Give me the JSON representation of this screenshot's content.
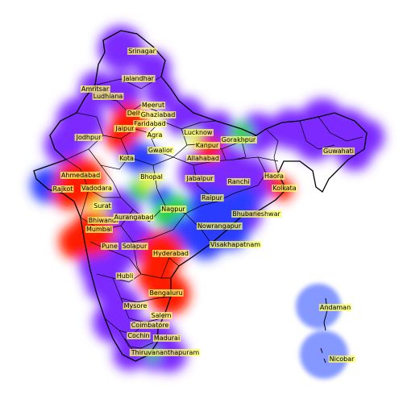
{
  "colors": {
    "purple": "#7b2cff",
    "blue": "#2a3cff",
    "red": "#ff1a00",
    "green": "#2fd14a",
    "yellow": "#e8ff2a",
    "label_bg": "#ffff66",
    "island_blue": "#6f86ff",
    "outline": "#000000"
  },
  "cities": [
    {
      "name": "Srinagar",
      "color": "purple"
    },
    {
      "name": "Jalandhar",
      "color": "purple"
    },
    {
      "name": "Amritsar",
      "color": "purple"
    },
    {
      "name": "Ludhiana",
      "color": "purple"
    },
    {
      "name": "Meerut",
      "color": "purple"
    },
    {
      "name": "Delhi",
      "color": "red"
    },
    {
      "name": "Ghaziabad",
      "color": "purple"
    },
    {
      "name": "Faridabad",
      "color": "purple"
    },
    {
      "name": "Jaipur",
      "color": "red"
    },
    {
      "name": "Agra",
      "color": "purple"
    },
    {
      "name": "Lucknow",
      "color": "yellow"
    },
    {
      "name": "Gorakhpur",
      "color": "green"
    },
    {
      "name": "Kanpur",
      "color": "red"
    },
    {
      "name": "Gwalior",
      "color": "blue"
    },
    {
      "name": "Jodhpur",
      "color": "purple"
    },
    {
      "name": "Kota",
      "color": "blue"
    },
    {
      "name": "Allahabad",
      "color": "purple"
    },
    {
      "name": "Guwahati",
      "color": "purple"
    },
    {
      "name": "Ahmedabad",
      "color": "red"
    },
    {
      "name": "Bhopal",
      "color": "yellow"
    },
    {
      "name": "Jabalpur",
      "color": "purple"
    },
    {
      "name": "Ranchi",
      "color": "purple"
    },
    {
      "name": "Haora",
      "color": "red"
    },
    {
      "name": "Kolkata",
      "color": "red"
    },
    {
      "name": "Rajkot",
      "color": "blue"
    },
    {
      "name": "Vadodara",
      "color": "yellow"
    },
    {
      "name": "Raipur",
      "color": "blue"
    },
    {
      "name": "Surat",
      "color": "yellow"
    },
    {
      "name": "Nagpur",
      "color": "green"
    },
    {
      "name": "Bhubaneshwar",
      "color": "purple"
    },
    {
      "name": "Bhiwandi",
      "color": "yellow"
    },
    {
      "name": "Aurangabad",
      "color": "purple"
    },
    {
      "name": "Nowrangapur",
      "color": "blue"
    },
    {
      "name": "Mumbai",
      "color": "red"
    },
    {
      "name": "Visakhapatnam",
      "color": "blue"
    },
    {
      "name": "Pune",
      "color": "purple"
    },
    {
      "name": "Solapur",
      "color": "purple"
    },
    {
      "name": "Hyderabad",
      "color": "red"
    },
    {
      "name": "Hubli",
      "color": "purple"
    },
    {
      "name": "Bengaluru",
      "color": "red"
    },
    {
      "name": "Mysore",
      "color": "purple"
    },
    {
      "name": "Salem",
      "color": "purple"
    },
    {
      "name": "Coimbatore",
      "color": "purple"
    },
    {
      "name": "Cochin",
      "color": "purple"
    },
    {
      "name": "Madurai",
      "color": "purple"
    },
    {
      "name": "Thiruvananthapuram",
      "color": "purple"
    },
    {
      "name": "Andaman",
      "color": "island_blue"
    },
    {
      "name": "Nicobar",
      "color": "island_blue"
    }
  ]
}
